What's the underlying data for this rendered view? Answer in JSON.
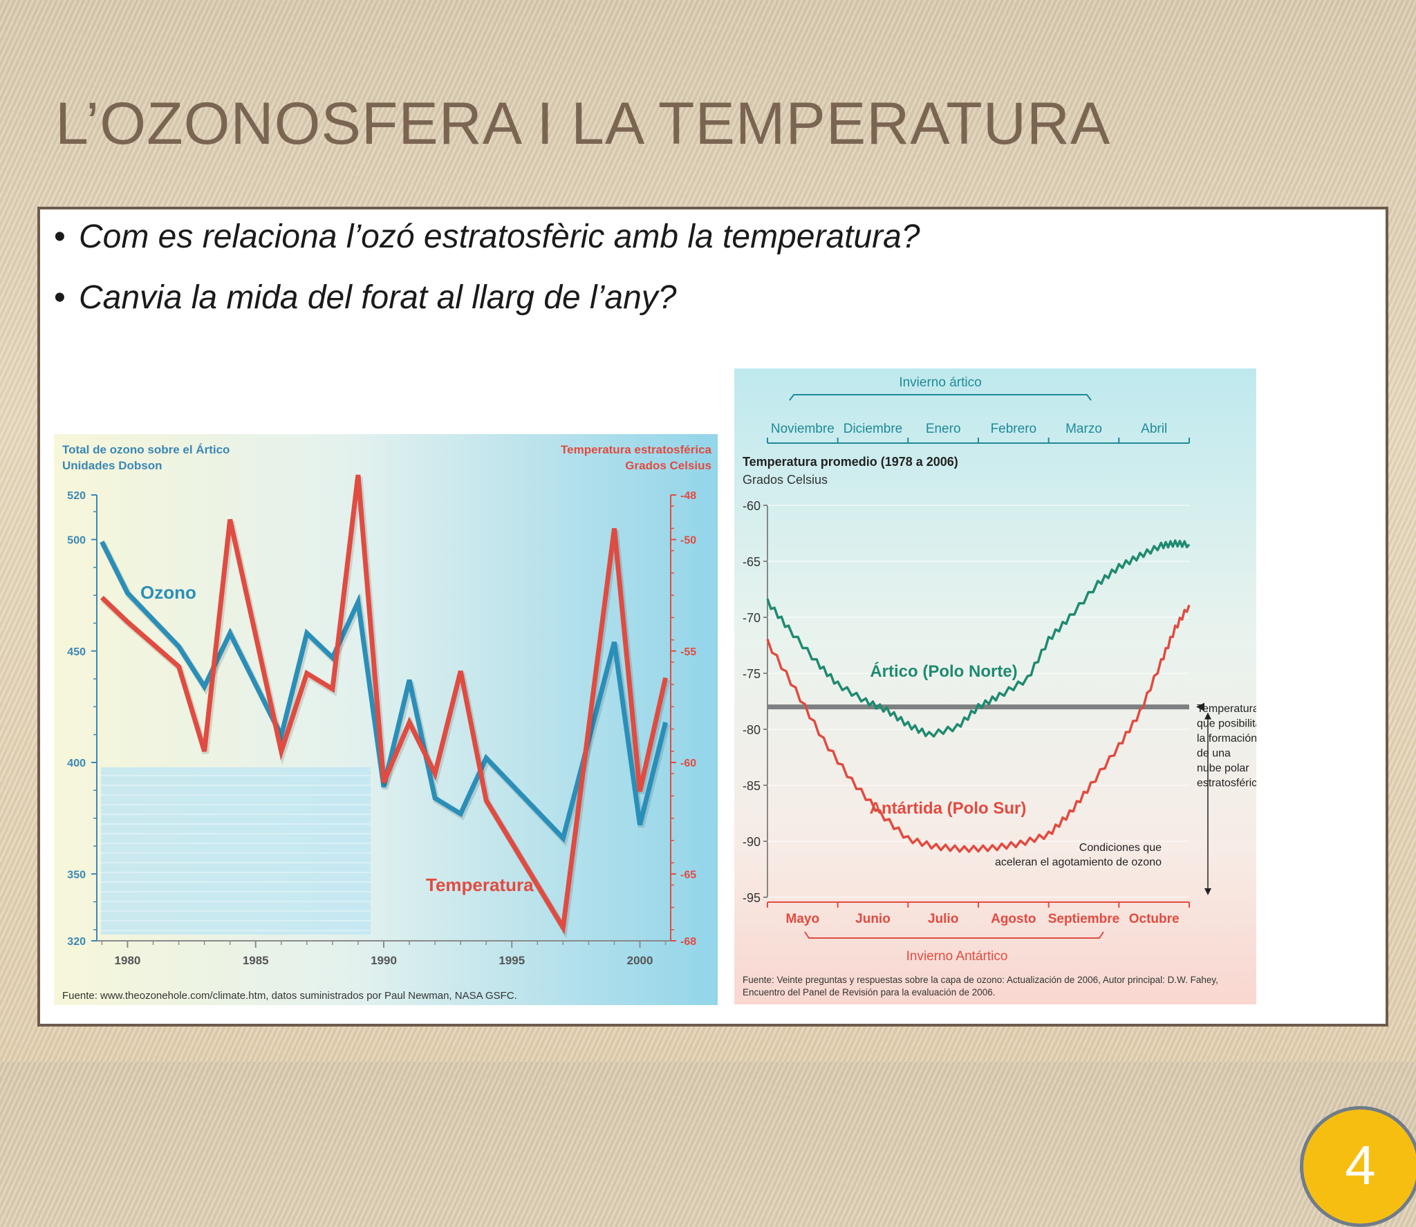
{
  "slide": {
    "title": "L’OZONOSFERA I LA TEMPERATURA",
    "bullets": [
      "Com es relaciona l’ozó estratosfèric amb la temperatura?",
      "Canvia la mida del forat al llarg de l’any?"
    ],
    "page_number": "4"
  },
  "chart_data": [
    {
      "type": "line",
      "title_left": "Total de ozono sobre el Ártico",
      "unit_left": "Unidades Dobson",
      "title_right": "Temperatura estratosférica",
      "unit_right": "Grados Celsius",
      "x": [
        1979,
        1980,
        1982,
        1983,
        1984,
        1986,
        1987,
        1988,
        1989,
        1990,
        1991,
        1992,
        1993,
        1994,
        1997,
        1999,
        2000,
        2001
      ],
      "x_ticks": [
        1980,
        1985,
        1990,
        1995,
        2000
      ],
      "x_tick_labels": [
        "1980",
        "1985",
        "1990",
        "1995",
        "2000"
      ],
      "xlim": [
        1978.8,
        2001.2
      ],
      "y_left_ticks": [
        320,
        350,
        400,
        450,
        500,
        520
      ],
      "y_left_tick_labels": [
        "320",
        "350",
        "400",
        "450",
        "500",
        "520"
      ],
      "ylim_left": [
        320,
        520
      ],
      "y_right_ticks": [
        -48,
        -50,
        -55,
        -60,
        -65,
        -68
      ],
      "y_right_tick_labels": [
        "-48",
        "-50",
        "-55",
        "-60",
        "-65",
        "-68"
      ],
      "ylim_right": [
        -68,
        -48
      ],
      "series": [
        {
          "name": "Ozono",
          "axis": "left",
          "color": "#2a8fb8",
          "values": [
            499,
            476,
            452,
            434,
            458,
            412,
            458,
            447,
            472,
            389,
            437,
            384,
            377,
            402,
            366,
            454,
            372,
            418
          ]
        },
        {
          "name": "Temperatura",
          "axis": "right",
          "color": "#e14b40",
          "values": [
            -52.6,
            -53.7,
            -55.7,
            -59.5,
            -49.1,
            -59.5,
            -56.0,
            -56.7,
            -47.1,
            -60.9,
            -58.2,
            -60.5,
            -55.9,
            -61.7,
            -67.4,
            -49.5,
            -61.3,
            -56.2
          ]
        }
      ],
      "source": "Fuente: www.theozonehole.com/climate.htm, datos suministrados por Paul Newman, NASA GSFC.",
      "grid": false,
      "legend": "inline labels"
    },
    {
      "type": "line",
      "top_label": "Invierno ártico",
      "top_months": [
        "Noviembre",
        "Diciembre",
        "Enero",
        "Febrero",
        "Marzo",
        "Abril"
      ],
      "bottom_months": [
        "Mayo",
        "Junio",
        "Julio",
        "Agosto",
        "Septiembre",
        "Octubre"
      ],
      "bottom_label": "Invierno Antártico",
      "ylabel": "Temperatura promedio (1978 a 2006)",
      "yunit": "Grados Celsius",
      "y_ticks": [
        -60,
        -65,
        -70,
        -75,
        -80,
        -85,
        -90,
        -95
      ],
      "y_tick_labels": [
        "-60",
        "-65",
        "-70",
        "-75",
        "-80",
        "-85",
        "-90",
        "-95"
      ],
      "ylim": [
        -95,
        -60
      ],
      "x_months_positions": [
        0,
        1,
        2,
        3,
        4,
        5,
        6
      ],
      "series": [
        {
          "name": "Ártico (Polo Norte)",
          "color": "#1f8a70",
          "x": [
            0,
            0.3,
            0.7,
            1.0,
            1.4,
            1.7,
            2.0,
            2.3,
            2.7,
            3.0,
            3.3,
            3.7,
            4.0,
            4.3,
            4.7,
            5.0,
            5.3,
            5.6,
            5.8,
            6.0
          ],
          "values": [
            -68.6,
            -71.0,
            -74.0,
            -76.0,
            -77.5,
            -78.3,
            -79.6,
            -80.5,
            -79.8,
            -78.0,
            -77.0,
            -75.5,
            -72.0,
            -70.0,
            -67.0,
            -65.5,
            -64.5,
            -63.6,
            -63.4,
            -63.5
          ]
        },
        {
          "name": "Antártida (Polo Sur)",
          "color": "#e14b40",
          "x": [
            0,
            0.4,
            0.8,
            1.2,
            1.6,
            2.0,
            2.4,
            2.8,
            3.2,
            3.6,
            4.0,
            4.3,
            4.6,
            5.0,
            5.3,
            5.6,
            5.8,
            6.0
          ],
          "values": [
            -72.2,
            -76.5,
            -81.0,
            -84.6,
            -87.5,
            -89.8,
            -90.5,
            -90.7,
            -90.6,
            -90.2,
            -89.4,
            -87.5,
            -85.0,
            -81.5,
            -78.5,
            -74.0,
            -71.0,
            -68.9
          ]
        }
      ],
      "threshold": {
        "value": -78,
        "label": "Temperatura que posibilita la formación de una nube polar estratosférica"
      },
      "annotation": "Condiciones que aceleran el agotamiento de ozono",
      "source": "Fuente: Veinte preguntas y respuestas sobre la capa de ozono: Actualización de 2006, Autor principal: D.W. Fahey, Encuentro del Panel de Revisión para la evaluación de 2006."
    }
  ]
}
